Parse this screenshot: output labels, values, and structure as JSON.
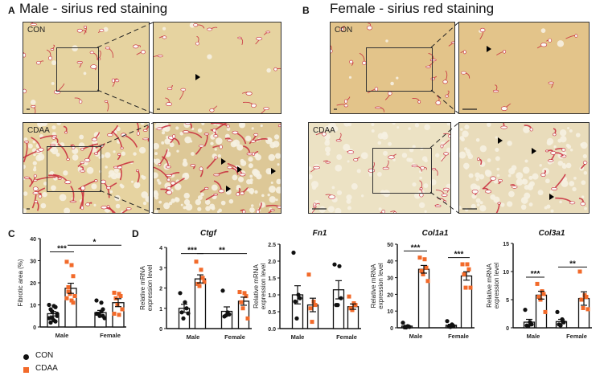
{
  "panels": {
    "A": {
      "label": "A",
      "title": "Male - sirius red staining",
      "con": "CON",
      "cdaa": "CDAA"
    },
    "B": {
      "label": "B",
      "title": "Female - sirius red staining",
      "con": "CON",
      "cdaa": "CDAA"
    },
    "C": {
      "label": "C"
    },
    "D": {
      "label": "D"
    }
  },
  "colors": {
    "con": "#111111",
    "cdaa": "#f26a2a",
    "tissue_male": "#e6d3a0",
    "tissue_female": "#e3c48a",
    "stain": "#c8283a"
  },
  "legend": [
    {
      "label": "CON",
      "marker": "circle"
    },
    {
      "label": "CDAA",
      "marker": "square"
    }
  ],
  "chart_data": [
    {
      "type": "bar",
      "panel": "C",
      "title": "",
      "ylabel": "Fibrotic area (%)",
      "ylim": [
        0,
        40
      ],
      "yticks": [
        0,
        10,
        20,
        30,
        40
      ],
      "categories": [
        "Male",
        "Female"
      ],
      "series": [
        {
          "name": "CON",
          "means": [
            6,
            6.5
          ],
          "sem": [
            1,
            1
          ],
          "points": [
            [
              10,
              9.5,
              9,
              8,
              7,
              5,
              4,
              3,
              2.5,
              2,
              4,
              6
            ],
            [
              12,
              11,
              8,
              6,
              5,
              4,
              6,
              7,
              5
            ]
          ]
        },
        {
          "name": "CDAA",
          "means": [
            17.5,
            11
          ],
          "sem": [
            2.3,
            1.8
          ],
          "points": [
            [
              29.5,
              28,
              23,
              16,
              15,
              14,
              13,
              12,
              11,
              18
            ],
            [
              15.5,
              15,
              14,
              13,
              10,
              8,
              6,
              5.5
            ]
          ]
        }
      ],
      "significance": [
        {
          "from": [
            0,
            0
          ],
          "to": [
            0,
            1
          ],
          "y": 34,
          "label": "***"
        },
        {
          "from": [
            0,
            1
          ],
          "to": [
            1,
            1
          ],
          "y": 37,
          "label": "*"
        }
      ]
    },
    {
      "type": "bar",
      "panel": "D",
      "title": "Ctgf",
      "ylabel": "Relative mRNA expression level",
      "ylim": [
        0,
        4
      ],
      "yticks": [
        0,
        1,
        2,
        3,
        4
      ],
      "categories": [
        "Male",
        "Female"
      ],
      "series": [
        {
          "name": "CON",
          "means": [
            1.0,
            0.85
          ],
          "sem": [
            0.2,
            0.22
          ],
          "points": [
            [
              1.75,
              1.3,
              1.0,
              0.8,
              0.5,
              0.75
            ],
            [
              1.87,
              0.8,
              0.7,
              0.6,
              0.65
            ]
          ]
        },
        {
          "name": "CDAA",
          "means": [
            2.45,
            1.35
          ],
          "sem": [
            0.2,
            0.2
          ],
          "points": [
            [
              3.3,
              2.9,
              2.5,
              2.2,
              2.1,
              2.3
            ],
            [
              1.8,
              1.75,
              1.6,
              1.3,
              1.0,
              0.5
            ]
          ]
        }
      ],
      "significance": [
        {
          "from": [
            0,
            0
          ],
          "to": [
            0,
            1
          ],
          "y": 3.7,
          "label": "***"
        },
        {
          "from": [
            0,
            1
          ],
          "to": [
            1,
            1
          ],
          "y": 3.7,
          "label": "**"
        }
      ]
    },
    {
      "type": "bar",
      "panel": "D",
      "title": "Fn1",
      "ylabel": "Relative mRNA expression level",
      "ylim": [
        0,
        2.5
      ],
      "yticks": [
        0,
        0.5,
        1.0,
        1.5,
        2.0,
        2.5
      ],
      "categories": [
        "Male",
        "Female"
      ],
      "series": [
        {
          "name": "CON",
          "means": [
            1.0,
            1.15
          ],
          "sem": [
            0.27,
            0.27
          ],
          "points": [
            [
              2.25,
              1.0,
              0.9,
              0.8,
              0.3
            ],
            [
              1.9,
              1.85,
              0.9,
              0.7,
              0.7
            ]
          ]
        },
        {
          "name": "CDAA",
          "means": [
            0.7,
            0.65
          ],
          "sem": [
            0.2,
            0.08
          ],
          "points": [
            [
              1.6,
              0.8,
              0.7,
              0.6,
              0.2
            ],
            [
              0.95,
              0.75,
              0.7,
              0.6,
              0.55
            ]
          ]
        }
      ],
      "significance": []
    },
    {
      "type": "bar",
      "panel": "D",
      "title": "Col1a1",
      "ylabel": "Relative mRNA expression level",
      "ylim": [
        0,
        50
      ],
      "yticks": [
        0,
        10,
        20,
        30,
        40,
        50
      ],
      "categories": [
        "Male",
        "Female"
      ],
      "series": [
        {
          "name": "CON",
          "means": [
            1,
            1.5
          ],
          "sem": [
            0.5,
            0.6
          ],
          "points": [
            [
              3,
              1,
              0.5,
              0.3,
              0.2
            ],
            [
              4,
              2,
              1,
              0.8,
              0.5
            ]
          ]
        },
        {
          "name": "CDAA",
          "means": [
            35,
            31
          ],
          "sem": [
            2.3,
            2.5
          ],
          "points": [
            [
              42,
              41,
              36,
              34,
              32,
              28
            ],
            [
              38,
              38,
              35,
              32,
              24,
              24
            ]
          ]
        }
      ],
      "significance": [
        {
          "from": [
            0,
            0
          ],
          "to": [
            0,
            1
          ],
          "y": 46,
          "label": "***"
        },
        {
          "from": [
            1,
            0
          ],
          "to": [
            1,
            1
          ],
          "y": 42,
          "label": "***"
        }
      ]
    },
    {
      "type": "bar",
      "panel": "D",
      "title": "Col3a1",
      "ylabel": "Relative mRNA expression level",
      "ylim": [
        0,
        15
      ],
      "yticks": [
        0,
        5,
        10,
        15
      ],
      "categories": [
        "Male",
        "Female"
      ],
      "series": [
        {
          "name": "CON",
          "means": [
            1,
            1.1
          ],
          "sem": [
            0.5,
            0.4
          ],
          "points": [
            [
              3.2,
              1,
              0.6,
              0.4,
              0.3
            ],
            [
              2.8,
              1.5,
              1,
              0.6,
              0.4
            ]
          ]
        },
        {
          "name": "CDAA",
          "means": [
            5.8,
            5.2
          ],
          "sem": [
            0.7,
            1.2
          ],
          "points": [
            [
              7.8,
              6.5,
              6,
              5.5,
              5,
              2.8
            ],
            [
              10,
              5.8,
              5.5,
              5,
              3.5,
              3.3
            ]
          ]
        }
      ],
      "significance": [
        {
          "from": [
            0,
            0
          ],
          "to": [
            0,
            1
          ],
          "y": 9,
          "label": "***"
        },
        {
          "from": [
            1,
            0
          ],
          "to": [
            1,
            1
          ],
          "y": 10.8,
          "label": "**"
        }
      ]
    }
  ]
}
